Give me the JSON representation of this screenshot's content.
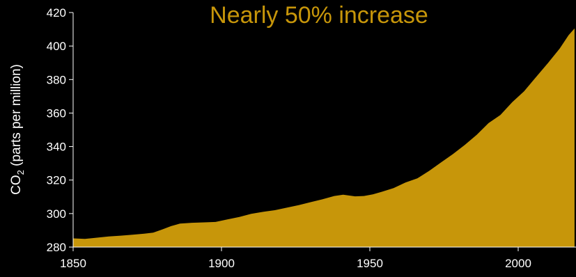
{
  "chart_data": {
    "type": "area",
    "title": "Nearly 50% increase",
    "ylabel_main": "CO",
    "ylabel_subscript": "2",
    "ylabel_rest": " (parts per million)",
    "xlabel": "",
    "xlim": [
      1850,
      2019
    ],
    "ylim": [
      280,
      420
    ],
    "x_ticks": [
      1850,
      1900,
      1950,
      2000
    ],
    "y_ticks": [
      280,
      300,
      320,
      340,
      360,
      380,
      400,
      420
    ],
    "grid": false,
    "series": [
      {
        "color": "#c7960a",
        "points": [
          [
            1850,
            285.2
          ],
          [
            1854,
            284.9
          ],
          [
            1858,
            285.6
          ],
          [
            1862,
            286.3
          ],
          [
            1866,
            286.8
          ],
          [
            1870,
            287.4
          ],
          [
            1874,
            288.0
          ],
          [
            1877,
            288.6
          ],
          [
            1880,
            290.5
          ],
          [
            1883,
            292.5
          ],
          [
            1886,
            294.0
          ],
          [
            1890,
            294.5
          ],
          [
            1895,
            294.8
          ],
          [
            1898,
            295.0
          ],
          [
            1902,
            296.5
          ],
          [
            1906,
            298.0
          ],
          [
            1910,
            299.8
          ],
          [
            1914,
            301.0
          ],
          [
            1918,
            302.0
          ],
          [
            1922,
            303.5
          ],
          [
            1926,
            305.0
          ],
          [
            1930,
            306.8
          ],
          [
            1934,
            308.5
          ],
          [
            1938,
            310.5
          ],
          [
            1941,
            311.3
          ],
          [
            1945,
            310.3
          ],
          [
            1948,
            310.5
          ],
          [
            1951,
            311.5
          ],
          [
            1954,
            313.0
          ],
          [
            1958,
            315.2
          ],
          [
            1962,
            318.5
          ],
          [
            1966,
            321.0
          ],
          [
            1970,
            325.5
          ],
          [
            1974,
            330.5
          ],
          [
            1978,
            335.5
          ],
          [
            1982,
            341.0
          ],
          [
            1986,
            347.0
          ],
          [
            1990,
            354.0
          ],
          [
            1994,
            358.8
          ],
          [
            1998,
            366.5
          ],
          [
            2002,
            373.0
          ],
          [
            2006,
            381.5
          ],
          [
            2010,
            389.8
          ],
          [
            2014,
            398.5
          ],
          [
            2017,
            406.5
          ],
          [
            2019,
            410.5
          ]
        ]
      }
    ],
    "colors": {
      "background": "#000000",
      "area": "#c7960a",
      "axis": "#ffffff",
      "title": "#c7960a"
    }
  }
}
